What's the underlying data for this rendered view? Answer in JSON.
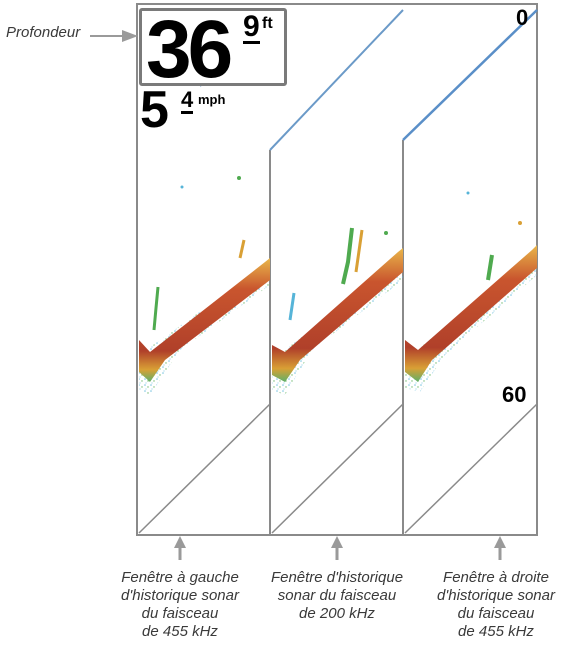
{
  "callout": {
    "label": "Profondeur"
  },
  "readouts": {
    "depth": {
      "whole": "36",
      "tenth": "9",
      "unit": "ft"
    },
    "speed": {
      "whole": "5",
      "tenth": "4",
      "unit": "mph"
    },
    "scale": {
      "top": "0",
      "bottom": "60"
    }
  },
  "captions": [
    {
      "lines": [
        "Fenêtre à gauche",
        "d'historique sonar",
        "du faisceau",
        "de 455 kHz"
      ]
    },
    {
      "lines": [
        "Fenêtre d'historique",
        "sonar du faisceau",
        "de 200 kHz"
      ]
    },
    {
      "lines": [
        "Fenêtre à droite",
        "d'historique sonar",
        "du faisceau",
        "de 455 kHz"
      ]
    }
  ],
  "colors": {
    "bottom_core": "#b8452a",
    "bottom_edge": "#e0a030",
    "returns_green": "#4faa4f",
    "returns_blue": "#56b4d8",
    "frame": "#8a8a8a",
    "line_blue": "#5a8fc8"
  }
}
